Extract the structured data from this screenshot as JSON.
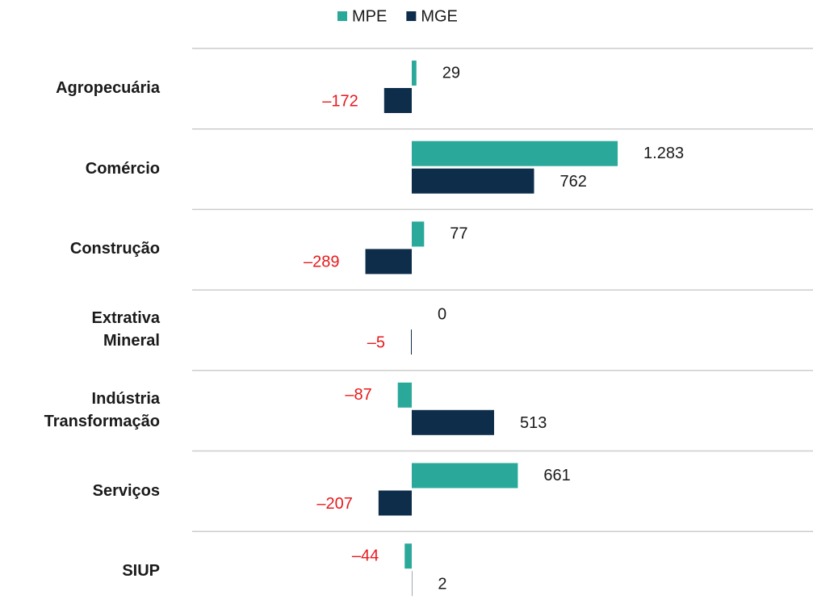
{
  "chart_data": {
    "type": "barh",
    "categories": [
      "Agropecuária",
      "Comércio",
      "Construção",
      "Extrativa Mineral",
      "Indústria Transformação",
      "Serviços",
      "SIUP"
    ],
    "series": [
      {
        "name": "MPE",
        "color": "#2aa89a",
        "values": [
          29,
          1283,
          77,
          0,
          -87,
          661,
          -44
        ],
        "value_labels": [
          "29",
          "1.283",
          "77",
          "0",
          "–87",
          "661",
          "–44"
        ]
      },
      {
        "name": "MGE",
        "color": "#0d2d4a",
        "values": [
          -172,
          762,
          -289,
          -5,
          513,
          -207,
          2
        ],
        "value_labels": [
          "–172",
          "762",
          "–289",
          "–5",
          "513",
          "–207",
          "2"
        ]
      }
    ],
    "negative_label_color": "#e8191c",
    "legend": "top"
  }
}
